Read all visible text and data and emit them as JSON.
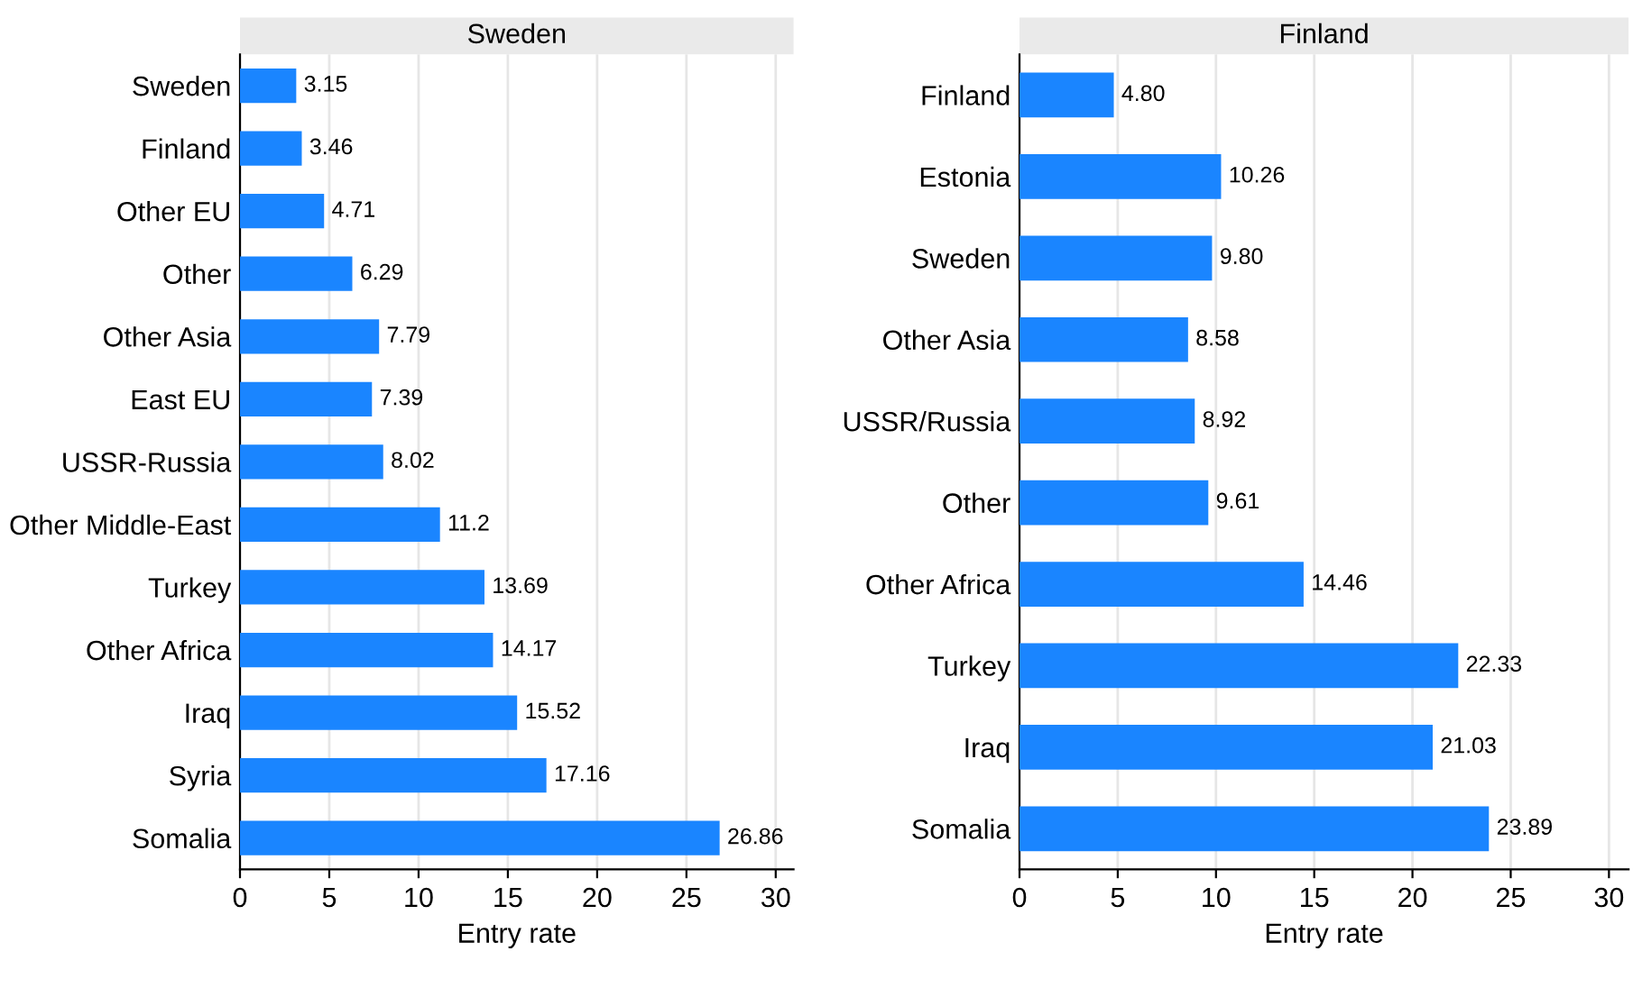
{
  "chart_data": [
    {
      "type": "bar",
      "title": "Sweden",
      "xlabel": "Entry rate",
      "orientation": "horizontal",
      "categories": [
        "Sweden",
        "Finland",
        "Other EU",
        "Other",
        "Other Asia",
        "East EU",
        "USSR-Russia",
        "Other Middle-East",
        "Turkey",
        "Other Africa",
        "Iraq",
        "Syria",
        "Somalia"
      ],
      "values": [
        3.15,
        3.46,
        4.71,
        6.29,
        7.79,
        7.39,
        8.02,
        11.2,
        13.69,
        14.17,
        15.52,
        17.16,
        26.86
      ],
      "value_labels": [
        "3.15",
        "3.46",
        "4.71",
        "6.29",
        "7.79",
        "7.39",
        "8.02",
        "11.2",
        "13.69",
        "14.17",
        "15.52",
        "17.16",
        "26.86"
      ],
      "color": "#1a85ff",
      "xlim": [
        0,
        31
      ],
      "xticks": [
        0,
        5,
        10,
        15,
        20,
        25,
        30
      ],
      "grid": "x"
    },
    {
      "type": "bar",
      "title": "Finland",
      "xlabel": "Entry rate",
      "orientation": "horizontal",
      "categories": [
        "Finland",
        "Estonia",
        "Sweden",
        "Other Asia",
        "USSR/Russia",
        "Other",
        "Other Africa",
        "Turkey",
        "Iraq",
        "Somalia"
      ],
      "values": [
        4.8,
        10.26,
        9.8,
        8.58,
        8.92,
        9.61,
        14.46,
        22.33,
        21.03,
        23.89
      ],
      "value_labels": [
        "4.80",
        "10.26",
        "9.80",
        "8.58",
        "8.92",
        "9.61",
        "14.46",
        "22.33",
        "21.03",
        "23.89"
      ],
      "color": "#1a85ff",
      "xlim": [
        0,
        31
      ],
      "xticks": [
        0,
        5,
        10,
        15,
        20,
        25,
        30
      ],
      "grid": "x"
    }
  ]
}
